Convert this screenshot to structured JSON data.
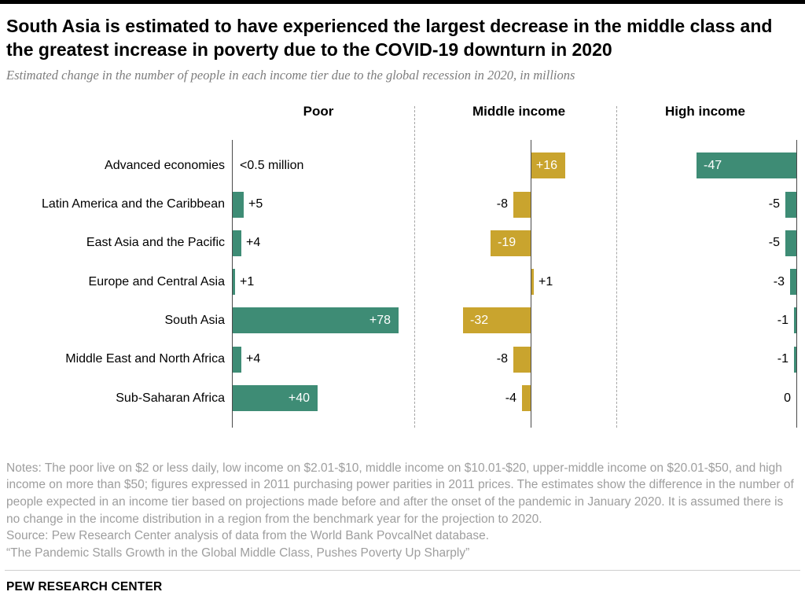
{
  "header": {
    "title": "South Asia is estimated to have experienced the largest decrease in the middle class and the greatest increase in poverty due to the COVID-19 downturn in 2020",
    "subtitle": "Estimated change in the number of people in each income tier due to the global recession in 2020, in millions"
  },
  "chart_data": {
    "type": "bar",
    "orientation": "horizontal",
    "unit": "millions",
    "grid": false,
    "legend_position": "none",
    "panels": [
      "Poor",
      "Middle income",
      "High income"
    ],
    "panel_colors": [
      "#3e8c75",
      "#c9a42e",
      "#3e8c75"
    ],
    "categories": [
      "Advanced economies",
      "Latin America and the Caribbean",
      "East Asia and the Pacific",
      "Europe and Central Asia",
      "South Asia",
      "Middle East and North Africa",
      "Sub-Saharan Africa"
    ],
    "series": [
      {
        "name": "Poor",
        "values": [
          null,
          5,
          4,
          1,
          78,
          4,
          40
        ],
        "labels": [
          "<0.5 million",
          "+5",
          "+4",
          "+1",
          "+78",
          "+4",
          "+40"
        ]
      },
      {
        "name": "Middle income",
        "values": [
          16,
          -8,
          -19,
          1,
          -32,
          -8,
          -4
        ],
        "labels": [
          "+16",
          "-8",
          "-19",
          "+1",
          "-32",
          "-8",
          "-4"
        ]
      },
      {
        "name": "High income",
        "values": [
          -47,
          -5,
          -5,
          -3,
          -1,
          -1,
          0
        ],
        "labels": [
          "-47",
          "-5",
          "-5",
          "-3",
          "-1",
          "-1",
          "0"
        ]
      }
    ]
  },
  "footer": {
    "notes": "Notes: The poor live on $2 or less daily, low income on $2.01-$10, middle income on $10.01-$20, upper-middle income on $20.01-$50, and high income on more than $50; figures expressed in 2011 purchasing power parities in 2011 prices. The estimates show the difference in the number of people expected in an income tier based on projections made before and after the onset of the pandemic in January 2020. It is assumed there is no change in the income distribution in a region from the benchmark year for the projection to 2020.",
    "source": "Source: Pew Research Center analysis of data from the World Bank PovcalNet database.",
    "report": "“The Pandemic Stalls Growth in the Global Middle Class, Pushes Poverty Up Sharply”",
    "brand": "PEW RESEARCH CENTER"
  }
}
